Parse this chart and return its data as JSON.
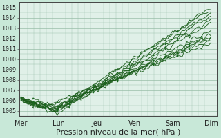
{
  "bg_color": "#c8e8d8",
  "plot_bg_color": "#e0f0e8",
  "grid_color": "#90b8a0",
  "line_color": "#1a5c1a",
  "marker_color": "#1a6820",
  "ylim": [
    1004.5,
    1015.5
  ],
  "yticks": [
    1005,
    1006,
    1007,
    1008,
    1009,
    1010,
    1011,
    1012,
    1013,
    1014,
    1015
  ],
  "xlabel": "Pression niveau de la mer( hPa )",
  "xlabel_fontsize": 8,
  "day_labels": [
    "Mer",
    "Lun",
    "Jeu",
    "Ven",
    "Sam",
    "Dim"
  ],
  "day_positions": [
    0,
    1,
    2,
    3,
    4,
    5
  ],
  "xlim": [
    -0.05,
    5.15
  ]
}
